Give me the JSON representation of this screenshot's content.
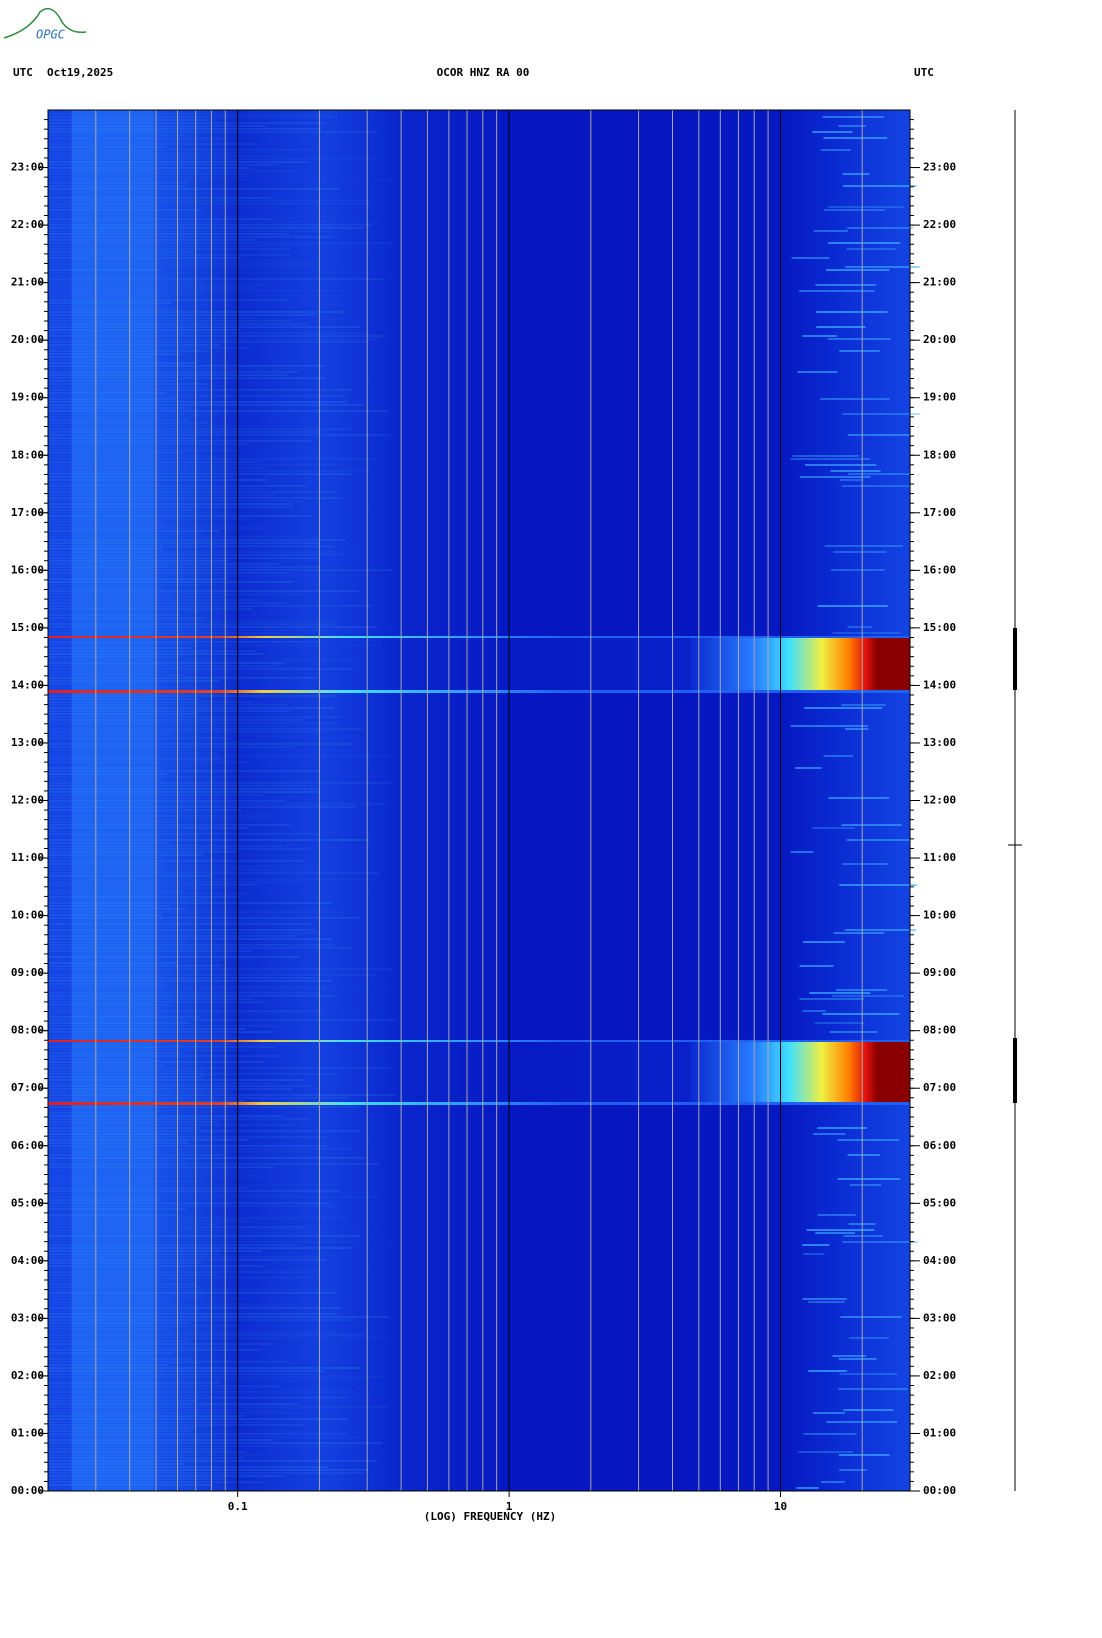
{
  "header": {
    "left_label": "UTC",
    "date": "Oct19,2025",
    "title": "OCOR HNZ RA 00",
    "right_label": "UTC",
    "logo": "OPGC"
  },
  "chart_data": {
    "type": "spectrogram",
    "xlabel": "(LOG) FREQUENCY (HZ)",
    "xscale": "log",
    "xlim": [
      0.02,
      30
    ],
    "xticks": [
      0.1,
      1,
      10
    ],
    "xminorticks": [
      0.03,
      0.04,
      0.05,
      0.06,
      0.07,
      0.08,
      0.09,
      0.2,
      0.3,
      0.4,
      0.5,
      0.6,
      0.7,
      0.8,
      0.9,
      2,
      3,
      4,
      5,
      6,
      7,
      8,
      9,
      20
    ],
    "ylim": [
      0,
      24
    ],
    "yticks": [
      {
        "value": 0,
        "label": "00:00"
      },
      {
        "value": 1,
        "label": "01:00"
      },
      {
        "value": 2,
        "label": "02:00"
      },
      {
        "value": 3,
        "label": "03:00"
      },
      {
        "value": 4,
        "label": "04:00"
      },
      {
        "value": 5,
        "label": "05:00"
      },
      {
        "value": 6,
        "label": "06:00"
      },
      {
        "value": 7,
        "label": "07:00"
      },
      {
        "value": 8,
        "label": "08:00"
      },
      {
        "value": 9,
        "label": "09:00"
      },
      {
        "value": 10,
        "label": "10:00"
      },
      {
        "value": 11,
        "label": "11:00"
      },
      {
        "value": 12,
        "label": "12:00"
      },
      {
        "value": 13,
        "label": "13:00"
      },
      {
        "value": 14,
        "label": "14:00"
      },
      {
        "value": 15,
        "label": "15:00"
      },
      {
        "value": 16,
        "label": "16:00"
      },
      {
        "value": 17,
        "label": "17:00"
      },
      {
        "value": 18,
        "label": "18:00"
      },
      {
        "value": 19,
        "label": "19:00"
      },
      {
        "value": 20,
        "label": "20:00"
      },
      {
        "value": 21,
        "label": "21:00"
      },
      {
        "value": 22,
        "label": "22:00"
      },
      {
        "value": 23,
        "label": "23:00"
      }
    ]
  }
}
